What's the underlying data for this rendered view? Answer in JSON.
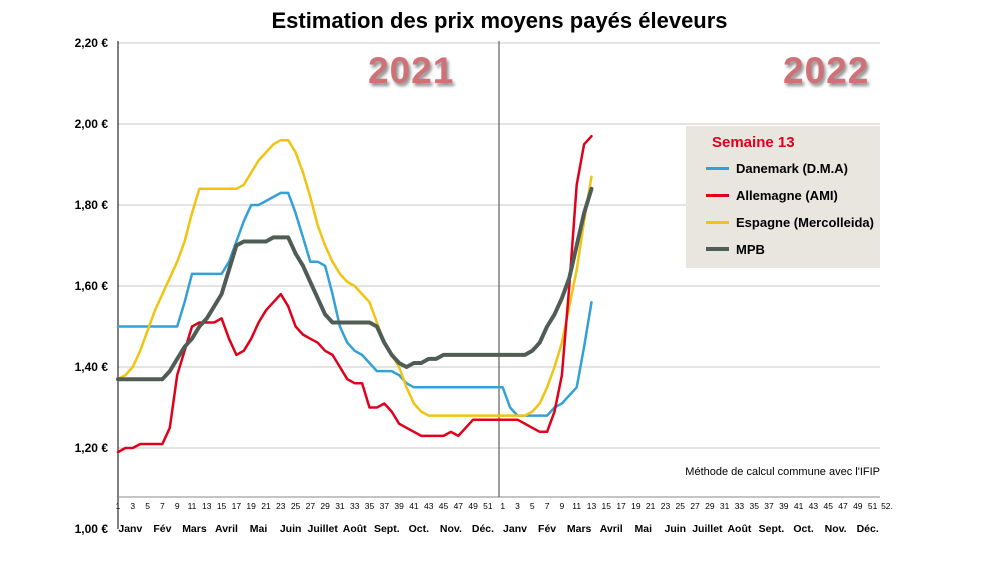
{
  "title": "Estimation des prix moyens payés éleveurs",
  "years": {
    "y2021": "2021",
    "y2022": "2022"
  },
  "legend": {
    "title": "Semaine 13",
    "items": [
      {
        "label": "Danemark (D.M.A)",
        "color": "#33a0d6"
      },
      {
        "label": "Allemagne (AMI)",
        "color": "#e0001b"
      },
      {
        "label": "Espagne (Mercolleida)",
        "color": "#f0c411"
      },
      {
        "label": "MPB",
        "color": "#505d56"
      }
    ]
  },
  "note": "Méthode de calcul commune avec l'IFIP",
  "chart_data": {
    "type": "line",
    "title": "Estimation des prix moyens payés éleveurs",
    "y_axis": {
      "min": 1.0,
      "max": 2.2,
      "step": 0.2,
      "unit": "€",
      "tick_labels": [
        "2,20 €",
        "2,00 €",
        "1,80 €",
        "1,60 €",
        "1,40 €",
        "1,20 €",
        "1,00 €"
      ]
    },
    "x_axis": {
      "years": [
        "2021",
        "2022"
      ],
      "weeks_per_year": 52,
      "week_tick_labels": [
        "1",
        "3",
        "5",
        "7",
        "9",
        "11",
        "13",
        "15",
        "17",
        "19",
        "21",
        "23",
        "25",
        "27",
        "29",
        "31",
        "33",
        "35",
        "37",
        "39",
        "41",
        "43",
        "45",
        "47",
        "49",
        "51"
      ],
      "last_week_label": "52.",
      "months": [
        "Janv",
        "Fév",
        "Mars",
        "Avril",
        "Mai",
        "Juin",
        "Juillet",
        "Août",
        "Sept.",
        "Oct.",
        "Nov.",
        "Déc."
      ]
    },
    "grid": true,
    "legend_position": "right",
    "legend_title": "Semaine 13",
    "divider_between_years": true,
    "draw_order": [
      0,
      2,
      1,
      3
    ],
    "series": [
      {
        "id": "danemark",
        "name": "Danemark (D.M.A)",
        "color": "#33a0d6",
        "stroke_width": 2.5,
        "values_2021": [
          1.5,
          1.5,
          1.5,
          1.5,
          1.5,
          1.5,
          1.5,
          1.5,
          1.5,
          1.56,
          1.63,
          1.63,
          1.63,
          1.63,
          1.63,
          1.66,
          1.71,
          1.76,
          1.8,
          1.8,
          1.81,
          1.82,
          1.83,
          1.83,
          1.78,
          1.72,
          1.66,
          1.66,
          1.65,
          1.58,
          1.5,
          1.46,
          1.44,
          1.43,
          1.41,
          1.39,
          1.39,
          1.39,
          1.38,
          1.36,
          1.35,
          1.35,
          1.35,
          1.35,
          1.35,
          1.35,
          1.35,
          1.35,
          1.35,
          1.35,
          1.35,
          1.35
        ],
        "values_2022": [
          1.35,
          1.3,
          1.28,
          1.28,
          1.28,
          1.28,
          1.28,
          1.3,
          1.31,
          1.33,
          1.35,
          1.45,
          1.56
        ]
      },
      {
        "id": "allemagne",
        "name": "Allemagne (AMI)",
        "color": "#e0001b",
        "stroke_width": 2.5,
        "values_2021": [
          1.19,
          1.2,
          1.2,
          1.21,
          1.21,
          1.21,
          1.21,
          1.25,
          1.38,
          1.44,
          1.5,
          1.51,
          1.51,
          1.51,
          1.52,
          1.47,
          1.43,
          1.44,
          1.47,
          1.51,
          1.54,
          1.56,
          1.58,
          1.55,
          1.5,
          1.48,
          1.47,
          1.46,
          1.44,
          1.43,
          1.4,
          1.37,
          1.36,
          1.36,
          1.3,
          1.3,
          1.31,
          1.29,
          1.26,
          1.25,
          1.24,
          1.23,
          1.23,
          1.23,
          1.23,
          1.24,
          1.23,
          1.25,
          1.27,
          1.27,
          1.27,
          1.27
        ],
        "values_2022": [
          1.27,
          1.27,
          1.27,
          1.26,
          1.25,
          1.24,
          1.24,
          1.29,
          1.38,
          1.6,
          1.85,
          1.95,
          1.97
        ]
      },
      {
        "id": "espagne",
        "name": "Espagne (Mercolleida)",
        "color": "#f0c411",
        "stroke_width": 2.5,
        "values_2021": [
          1.37,
          1.38,
          1.4,
          1.44,
          1.49,
          1.54,
          1.58,
          1.62,
          1.66,
          1.71,
          1.78,
          1.84,
          1.84,
          1.84,
          1.84,
          1.84,
          1.84,
          1.85,
          1.88,
          1.91,
          1.93,
          1.95,
          1.96,
          1.96,
          1.93,
          1.88,
          1.82,
          1.75,
          1.7,
          1.66,
          1.63,
          1.61,
          1.6,
          1.58,
          1.56,
          1.51,
          1.46,
          1.43,
          1.4,
          1.35,
          1.31,
          1.29,
          1.28,
          1.28,
          1.28,
          1.28,
          1.28,
          1.28,
          1.28,
          1.28,
          1.28,
          1.28
        ],
        "values_2022": [
          1.28,
          1.28,
          1.28,
          1.28,
          1.29,
          1.31,
          1.35,
          1.4,
          1.46,
          1.55,
          1.64,
          1.76,
          1.87
        ]
      },
      {
        "id": "mpb",
        "name": "MPB",
        "color": "#505d56",
        "stroke_width": 4,
        "values_2021": [
          1.37,
          1.37,
          1.37,
          1.37,
          1.37,
          1.37,
          1.37,
          1.39,
          1.42,
          1.45,
          1.47,
          1.5,
          1.52,
          1.55,
          1.58,
          1.64,
          1.7,
          1.71,
          1.71,
          1.71,
          1.71,
          1.72,
          1.72,
          1.72,
          1.68,
          1.65,
          1.61,
          1.57,
          1.53,
          1.51,
          1.51,
          1.51,
          1.51,
          1.51,
          1.51,
          1.5,
          1.46,
          1.43,
          1.41,
          1.4,
          1.41,
          1.41,
          1.42,
          1.42,
          1.43,
          1.43,
          1.43,
          1.43,
          1.43,
          1.43,
          1.43,
          1.43
        ],
        "values_2022": [
          1.43,
          1.43,
          1.43,
          1.43,
          1.44,
          1.46,
          1.5,
          1.53,
          1.57,
          1.62,
          1.7,
          1.78,
          1.84
        ]
      }
    ]
  }
}
